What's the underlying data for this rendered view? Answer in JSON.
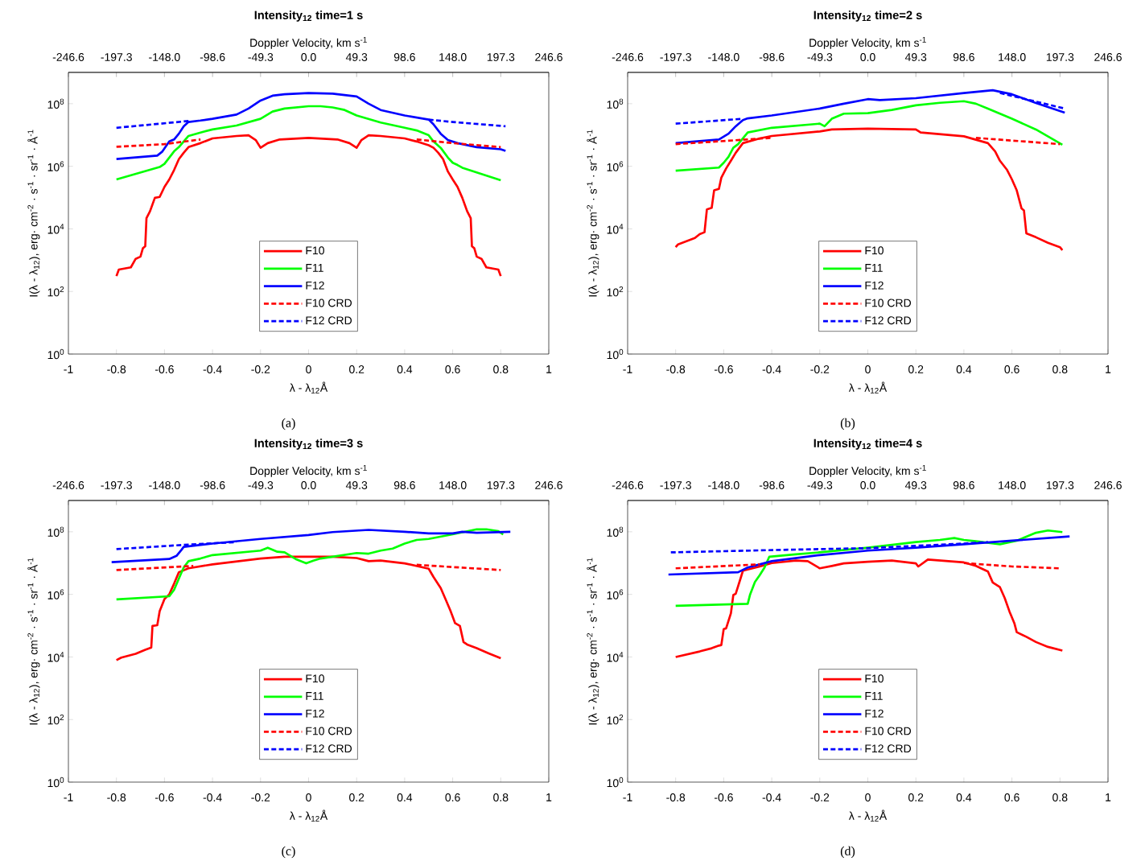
{
  "chart_data": [
    {
      "type": "line",
      "title": "**Intensity$_{12}$ time=1 s**",
      "x2label": "Doppler Velocity, km s$^{-1}$",
      "xlabel": "λ - λ$_{12}$Å",
      "ylabel": "I(λ - λ$_{12}$), erg· cm$^{-2}$ · s$^{-1}$ · sr$^{-1}$ · Å$^{-1}$",
      "annotations": [
        "(a)"
      ],
      "log": "y",
      "legend": "bottom",
      "xlim": [
        -1,
        1
      ],
      "xticks": [
        -1,
        -0.8,
        -0.6,
        -0.4,
        -0.2,
        0,
        0.2,
        0.4,
        0.6,
        0.8,
        1
      ],
      "x2lim": [
        -246.6,
        246.6
      ],
      "x2ticks": [
        -246.6,
        -197.3,
        {
          "value": -148,
          "label": "-148.0"
        },
        -98.6,
        -49.3,
        {
          "value": 0,
          "label": "0.0"
        },
        49.3,
        98.6,
        {
          "value": 148,
          "label": "148.0"
        },
        197.3,
        246.6
      ],
      "ylim": [
        1,
        1000000000.0
      ],
      "yticks": [
        {
          "value": 1,
          "label": "10$^{0}$"
        },
        {
          "value": 100,
          "label": "10$^{2}$"
        },
        {
          "value": 10000,
          "label": "10$^{4}$"
        },
        {
          "value": 1000000,
          "label": "10$^{6}$"
        },
        {
          "value": 100000000,
          "label": "10$^{8}$"
        }
      ],
      "series": [
        {
          "name": "F10",
          "color": "#ff0000",
          "line_style": "solid",
          "x": [
            -0.8,
            -0.79,
            -0.74,
            -0.72,
            -0.7,
            -0.69,
            -0.68,
            -0.675,
            -0.66,
            -0.64,
            -0.62,
            -0.6,
            -0.58,
            -0.56,
            -0.54,
            -0.52,
            -0.5,
            -0.45,
            -0.4,
            -0.3,
            -0.25,
            -0.22,
            -0.2,
            -0.17,
            -0.12,
            0,
            0.12,
            0.17,
            0.2,
            0.22,
            0.25,
            0.3,
            0.4,
            0.45,
            0.5,
            0.52,
            0.54,
            0.56,
            0.58,
            0.6,
            0.62,
            0.64,
            0.66,
            0.675,
            0.68,
            0.69,
            0.7,
            0.72,
            0.74,
            0.79,
            0.8
          ],
          "values": [
            310,
            500,
            590,
            1100,
            1300,
            2400,
            2800,
            22000,
            37000,
            98000,
            105000,
            220000.0,
            380000.0,
            760000.0,
            1700000.0,
            2700000.0,
            4100000.0,
            5500000.0,
            7800000.0,
            9300000.0,
            9800000.0,
            6900000.0,
            3900000.0,
            5500000.0,
            7200000.0,
            8100000.0,
            7200000.0,
            5500000.0,
            3900000.0,
            6900000.0,
            9800000.0,
            9300000.0,
            7800000.0,
            6200000.0,
            4700000.0,
            3900000.0,
            2700000.0,
            1700000.0,
            680000.0,
            380000.0,
            220000.0,
            98000,
            37000,
            22000,
            2800,
            2400,
            1300,
            1100,
            590,
            500,
            310
          ]
        },
        {
          "name": "F11",
          "color": "#00ff00",
          "line_style": "solid",
          "x": [
            -0.8,
            -0.62,
            -0.6,
            -0.58,
            -0.56,
            -0.54,
            -0.52,
            -0.5,
            -0.45,
            -0.4,
            -0.3,
            -0.2,
            -0.15,
            -0.1,
            0,
            0.05,
            0.1,
            0.15,
            0.2,
            0.3,
            0.4,
            0.45,
            0.5,
            0.52,
            0.55,
            0.58,
            0.6,
            0.62,
            0.64,
            0.8
          ],
          "values": [
            380000.0,
            950000.0,
            1200000.0,
            1900000.0,
            3000000.0,
            4100000.0,
            6200000.0,
            9300000.0,
            12000000.0,
            15000000.0,
            20000000.0,
            33000000.0,
            56000000.0,
            70000000.0,
            83000000.0,
            83000000.0,
            76000000.0,
            63000000.0,
            42000000.0,
            25000000.0,
            17000000.0,
            14000000.0,
            9800000.0,
            6200000.0,
            3900000.0,
            1900000.0,
            1300000.0,
            1100000.0,
            900000.0,
            360000.0
          ]
        },
        {
          "name": "F12",
          "color": "#0000ff",
          "line_style": "solid",
          "x": [
            -0.8,
            -0.63,
            -0.61,
            -0.58,
            -0.56,
            -0.54,
            -0.52,
            -0.5,
            -0.45,
            -0.4,
            -0.3,
            -0.25,
            -0.2,
            -0.15,
            -0.1,
            0,
            0.1,
            0.2,
            0.25,
            0.3,
            0.4,
            0.5,
            0.52,
            0.55,
            0.58,
            0.62,
            0.7,
            0.8,
            0.82
          ],
          "values": [
            1700000.0,
            2200000.0,
            2900000.0,
            6200000.0,
            7200000.0,
            11000000.0,
            19000000.0,
            26000000.0,
            29000000.0,
            33000000.0,
            45000000.0,
            70000000.0,
            126000000.0,
            180000000.0,
            200000000.0,
            220000000.0,
            210000000.0,
            170000000.0,
            100000000.0,
            63000000.0,
            42000000.0,
            31000000.0,
            22000000.0,
            11000000.0,
            6900000.0,
            5500000.0,
            4100000.0,
            3500000.0,
            3100000.0
          ]
        },
        {
          "name": "F10 CRD",
          "color": "#ff0000",
          "line_style": "dashed",
          "x": [
            -0.8,
            -0.6,
            -0.45,
            0,
            0.45,
            0.6,
            0.8
          ],
          "values": [
            4200000.0,
            5100000.0,
            7200000.0,
            null,
            7200000.0,
            5500000.0,
            4100000.0
          ]
        },
        {
          "name": "F12 CRD",
          "color": "#0000ff",
          "line_style": "dashed",
          "x": [
            -0.8,
            -0.5,
            0,
            0.5,
            0.6,
            0.82
          ],
          "values": [
            17000000.0,
            28000000.0,
            null,
            31000000.0,
            26000000.0,
            19000000.0
          ]
        }
      ]
    },
    {
      "type": "line",
      "title": "**Intensity$_{12}$ time=2 s**",
      "x2label": "Doppler Velocity, km s$^{-1}$",
      "xlabel": "λ - λ$_{12}$Å",
      "ylabel": "I(λ - λ$_{12}$), erg· cm$^{-2}$ · s$^{-1}$ · sr$^{-1}$ · Å$^{-1}$",
      "annotations": [
        "(b)"
      ],
      "log": "y",
      "legend": "bottom",
      "xlim": [
        -1,
        1
      ],
      "xticks": [
        -1,
        -0.8,
        -0.6,
        -0.4,
        -0.2,
        0,
        0.2,
        0.4,
        0.6,
        0.8,
        1
      ],
      "x2lim": [
        -246.6,
        246.6
      ],
      "x2ticks": [
        -246.6,
        -197.3,
        {
          "value": -148,
          "label": "-148.0"
        },
        -98.6,
        -49.3,
        {
          "value": 0,
          "label": "0.0"
        },
        49.3,
        98.6,
        {
          "value": 148,
          "label": "148.0"
        },
        197.3,
        246.6
      ],
      "ylim": [
        1,
        1000000000.0
      ],
      "yticks": [
        {
          "value": 1,
          "label": "10$^{0}$"
        },
        {
          "value": 100,
          "label": "10$^{2}$"
        },
        {
          "value": 10000,
          "label": "10$^{4}$"
        },
        {
          "value": 1000000,
          "label": "10$^{6}$"
        },
        {
          "value": 100000000,
          "label": "10$^{8}$"
        }
      ],
      "series": [
        {
          "name": "F10",
          "color": "#ff0000",
          "line_style": "solid",
          "x": [
            -0.8,
            -0.79,
            -0.72,
            -0.7,
            -0.68,
            -0.67,
            -0.65,
            -0.64,
            -0.62,
            -0.61,
            -0.59,
            -0.57,
            -0.55,
            -0.52,
            -0.45,
            -0.4,
            -0.2,
            -0.15,
            0,
            0.2,
            0.22,
            0.4,
            0.5,
            0.53,
            0.55,
            0.58,
            0.6,
            0.62,
            0.64,
            0.65,
            0.66,
            0.7,
            0.75,
            0.8,
            0.81
          ],
          "values": [
            2600,
            3200,
            5100,
            6800,
            7800,
            42000,
            47000,
            170000.0,
            190000.0,
            430000.0,
            850000.0,
            1500000.0,
            2700000.0,
            5500000.0,
            7800000.0,
            9300000.0,
            13000000.0,
            15000000.0,
            16000000.0,
            15000000.0,
            12000000.0,
            9100000.0,
            5500000.0,
            3000000.0,
            1500000.0,
            760000.0,
            380000.0,
            170000.0,
            45000,
            39000,
            7200,
            5400,
            3600,
            2600,
            2100
          ]
        },
        {
          "name": "F11",
          "color": "#00ff00",
          "line_style": "solid",
          "x": [
            -0.8,
            -0.62,
            -0.6,
            -0.58,
            -0.56,
            -0.54,
            -0.52,
            -0.5,
            -0.4,
            -0.2,
            -0.18,
            -0.15,
            -0.1,
            0,
            0.1,
            0.2,
            0.3,
            0.4,
            0.45,
            0.5,
            0.6,
            0.7,
            0.81
          ],
          "values": [
            720000.0,
            910000.0,
            1300000.0,
            2000000.0,
            3900000.0,
            5100000.0,
            7800000.0,
            12000000.0,
            17000000.0,
            23000000.0,
            19000000.0,
            33000000.0,
            48000000.0,
            50000000.0,
            63000000.0,
            89000000.0,
            107000000.0,
            120000000.0,
            100000000.0,
            70000000.0,
            33000000.0,
            15000000.0,
            4900000.0
          ]
        },
        {
          "name": "F12",
          "color": "#0000ff",
          "line_style": "solid",
          "x": [
            -0.8,
            -0.62,
            -0.58,
            -0.55,
            -0.52,
            -0.5,
            -0.4,
            -0.2,
            -0.1,
            0,
            0.05,
            0.2,
            0.4,
            0.52,
            0.6,
            0.7,
            0.82
          ],
          "values": [
            5500000.0,
            7200000.0,
            11000000.0,
            19000000.0,
            30000000.0,
            34000000.0,
            42000000.0,
            70000000.0,
            100000000.0,
            140000000.0,
            130000000.0,
            150000000.0,
            220000000.0,
            270000000.0,
            200000000.0,
            105000000.0,
            52000000.0
          ]
        },
        {
          "name": "F10 CRD",
          "color": "#ff0000",
          "line_style": "dashed",
          "x": [
            -0.8,
            -0.4,
            0,
            0.45,
            0.8
          ],
          "values": [
            5100000.0,
            8100000.0,
            null,
            8100000.0,
            5100000.0
          ]
        },
        {
          "name": "F12 CRD",
          "color": "#0000ff",
          "line_style": "dashed",
          "x": [
            -0.8,
            -0.52,
            0,
            0.55,
            0.82
          ],
          "values": [
            23000000.0,
            33000000.0,
            null,
            220000000.0,
            70000000.0
          ]
        }
      ]
    },
    {
      "type": "line",
      "title": "**Intensity$_{12}$ time=3 s**",
      "x2label": "Doppler Velocity, km s$^{-1}$",
      "xlabel": "λ - λ$_{12}$Å",
      "ylabel": "I(λ - λ$_{12}$), erg· cm$^{-2}$ · s$^{-1}$ · sr$^{-1}$ · Å$^{-1}$",
      "annotations": [
        "(c)"
      ],
      "log": "y",
      "legend": "bottom",
      "xlim": [
        -1,
        1
      ],
      "xticks": [
        -1,
        -0.8,
        -0.6,
        -0.4,
        -0.2,
        0,
        0.2,
        0.4,
        0.6,
        0.8,
        1
      ],
      "x2lim": [
        -246.6,
        246.6
      ],
      "x2ticks": [
        -246.6,
        -197.3,
        {
          "value": -148,
          "label": "-148.0"
        },
        -98.6,
        -49.3,
        {
          "value": 0,
          "label": "0.0"
        },
        49.3,
        98.6,
        {
          "value": 148,
          "label": "148.0"
        },
        197.3,
        246.6
      ],
      "ylim": [
        1,
        1000000000.0
      ],
      "yticks": [
        {
          "value": 1,
          "label": "10$^{0}$"
        },
        {
          "value": 100,
          "label": "10$^{2}$"
        },
        {
          "value": 10000,
          "label": "10$^{4}$"
        },
        {
          "value": 1000000,
          "label": "10$^{6}$"
        },
        {
          "value": 100000000,
          "label": "10$^{8}$"
        }
      ],
      "series": [
        {
          "name": "F10",
          "color": "#ff0000",
          "line_style": "solid",
          "x": [
            -0.8,
            -0.78,
            -0.72,
            -0.68,
            -0.655,
            -0.65,
            -0.63,
            -0.62,
            -0.6,
            -0.58,
            -0.56,
            -0.54,
            -0.5,
            -0.4,
            -0.2,
            -0.1,
            0.1,
            0.2,
            0.25,
            0.3,
            0.4,
            0.5,
            0.52,
            0.55,
            0.57,
            0.59,
            0.61,
            0.63,
            0.645,
            0.66,
            0.7,
            0.75,
            0.8
          ],
          "values": [
            7900,
            9500,
            12600,
            17000,
            20000,
            98000,
            103000.0,
            290000.0,
            710000.0,
            1000000.0,
            2200000.0,
            5100000.0,
            6800000.0,
            9100000.0,
            14000000.0,
            16000000.0,
            16000000.0,
            14500000.0,
            11500000.0,
            12000000.0,
            9800000.0,
            6600000.0,
            3600000.0,
            1600000.0,
            710000.0,
            310000.0,
            120000.0,
            98000,
            30000,
            25000,
            19000,
            13000,
            9100
          ]
        },
        {
          "name": "F11",
          "color": "#00ff00",
          "line_style": "solid",
          "x": [
            -0.8,
            -0.58,
            -0.56,
            -0.54,
            -0.52,
            -0.5,
            -0.45,
            -0.4,
            -0.2,
            -0.17,
            -0.13,
            -0.1,
            -0.05,
            -0.01,
            0.02,
            0.05,
            0.1,
            0.2,
            0.25,
            0.3,
            0.35,
            0.4,
            0.45,
            0.5,
            0.6,
            0.7,
            0.74,
            0.79,
            0.81
          ],
          "values": [
            690000.0,
            870000.0,
            1400000.0,
            3200000.0,
            7200000.0,
            11500000.0,
            14000000.0,
            18000000.0,
            25000000.0,
            31000000.0,
            23000000.0,
            22000000.0,
            13000000.0,
            9800000.0,
            12000000.0,
            14000000.0,
            16000000.0,
            21000000.0,
            20000000.0,
            25000000.0,
            29000000.0,
            42000000.0,
            55000000.0,
            59000000.0,
            83000000.0,
            120000000.0,
            120000000.0,
            105000000.0,
            83000000.0
          ]
        },
        {
          "name": "F12",
          "color": "#0000ff",
          "line_style": "solid",
          "x": [
            -0.82,
            -0.58,
            -0.55,
            -0.53,
            -0.52,
            -0.4,
            -0.2,
            0,
            0.1,
            0.25,
            0.4,
            0.5,
            0.6,
            0.64,
            0.7,
            0.84
          ],
          "values": [
            10700000.0,
            13500000.0,
            17000000.0,
            26000000.0,
            33000000.0,
            42000000.0,
            59000000.0,
            79000000.0,
            98000000.0,
            115000000.0,
            100000000.0,
            89000000.0,
            89000000.0,
            100000000.0,
            93000000.0,
            100000000.0
          ]
        },
        {
          "name": "F10 CRD",
          "color": "#ff0000",
          "line_style": "dashed",
          "x": [
            -0.8,
            -0.48,
            0,
            0.45,
            0.8
          ],
          "values": [
            6000000.0,
            8100000.0,
            null,
            8800000.0,
            6000000.0
          ]
        },
        {
          "name": "F12 CRD",
          "color": "#0000ff",
          "line_style": "dashed",
          "x": [
            -0.8,
            -0.5,
            -0.3
          ],
          "values": [
            28000000.0,
            39000000.0,
            47000000.0
          ]
        }
      ]
    },
    {
      "type": "line",
      "title": "**Intensity$_{12}$ time=4 s**",
      "x2label": "Doppler Velocity, km s$^{-1}$",
      "xlabel": "λ - λ$_{12}$Å",
      "ylabel": "I(λ - λ$_{12}$), erg· cm$^{-2}$ · s$^{-1}$ · sr$^{-1}$ · Å$^{-1}$",
      "annotations": [
        "(d)"
      ],
      "log": "y",
      "legend": "bottom",
      "xlim": [
        -1,
        1
      ],
      "xticks": [
        -1,
        -0.8,
        -0.6,
        -0.4,
        -0.2,
        0,
        0.2,
        0.4,
        0.6,
        0.8,
        1
      ],
      "x2lim": [
        -246.6,
        246.6
      ],
      "x2ticks": [
        -246.6,
        -197.3,
        {
          "value": -148,
          "label": "-148.0"
        },
        -98.6,
        -49.3,
        {
          "value": 0,
          "label": "0.0"
        },
        49.3,
        98.6,
        {
          "value": 148,
          "label": "148.0"
        },
        197.3,
        246.6
      ],
      "ylim": [
        1,
        1000000000.0
      ],
      "yticks": [
        {
          "value": 1,
          "label": "10$^{0}$"
        },
        {
          "value": 100,
          "label": "10$^{2}$"
        },
        {
          "value": 10000,
          "label": "10$^{4}$"
        },
        {
          "value": 1000000,
          "label": "10$^{6}$"
        },
        {
          "value": 100000000,
          "label": "10$^{8}$"
        }
      ],
      "series": [
        {
          "name": "F10",
          "color": "#ff0000",
          "line_style": "solid",
          "x": [
            -0.8,
            -0.7,
            -0.65,
            -0.62,
            -0.61,
            -0.6,
            -0.59,
            -0.57,
            -0.56,
            -0.55,
            -0.53,
            -0.52,
            -0.45,
            -0.4,
            -0.3,
            -0.25,
            -0.2,
            -0.15,
            -0.1,
            0,
            0.1,
            0.2,
            0.21,
            0.25,
            0.4,
            0.45,
            0.5,
            0.52,
            0.55,
            0.57,
            0.59,
            0.61,
            0.62,
            0.66,
            0.7,
            0.75,
            0.81
          ],
          "values": [
            10000,
            15000,
            19000,
            23000,
            24000,
            78000,
            82000,
            250000.0,
            950000.0,
            1050000.0,
            3200000.0,
            5700000.0,
            7800000.0,
            10000000.0,
            12000000.0,
            11500000.0,
            6800000.0,
            8100000.0,
            9800000.0,
            11000000.0,
            12000000.0,
            9800000.0,
            7800000.0,
            13000000.0,
            10500000.0,
            8100000.0,
            5400000.0,
            2400000.0,
            1700000.0,
            760000.0,
            280000.0,
            120000.0,
            62000,
            44000,
            30000,
            21000,
            16000
          ]
        },
        {
          "name": "F11",
          "color": "#00ff00",
          "line_style": "solid",
          "x": [
            -0.8,
            -0.5,
            -0.49,
            -0.47,
            -0.45,
            -0.43,
            -0.41,
            -0.3,
            -0.2,
            0,
            0.2,
            0.3,
            0.36,
            0.4,
            0.45,
            0.55,
            0.62,
            0.7,
            0.75,
            0.81
          ],
          "values": [
            430000.0,
            500000.0,
            1000000.0,
            2500000.0,
            4100000.0,
            7200000.0,
            16000000.0,
            19000000.0,
            22000000.0,
            31000000.0,
            47000000.0,
            55000000.0,
            63000000.0,
            55000000.0,
            50000000.0,
            40000000.0,
            52000000.0,
            93000000.0,
            110000000.0,
            98000000.0
          ]
        },
        {
          "name": "F12",
          "color": "#0000ff",
          "line_style": "solid",
          "x": [
            -0.83,
            -0.54,
            -0.5,
            -0.45,
            -0.4,
            -0.2,
            0,
            0.2,
            0.4,
            0.6,
            0.84
          ],
          "values": [
            4300000.0,
            5100000.0,
            7200000.0,
            9100000.0,
            11500000.0,
            18000000.0,
            25000000.0,
            31000000.0,
            40000000.0,
            52000000.0,
            71000000.0
          ]
        },
        {
          "name": "F10 CRD",
          "color": "#ff0000",
          "line_style": "dashed",
          "x": [
            -0.8,
            -0.45,
            0,
            0.4,
            0.6,
            0.8
          ],
          "values": [
            6800000.0,
            9100000.0,
            null,
            10000000.0,
            7800000.0,
            6800000.0
          ]
        },
        {
          "name": "F12 CRD",
          "color": "#0000ff",
          "line_style": "dashed",
          "x": [
            -0.82,
            -0.4,
            0,
            0.4,
            0.5
          ],
          "values": [
            22000000.0,
            26000000.0,
            30000000.0,
            42000000.0,
            47000000.0
          ]
        }
      ]
    }
  ]
}
